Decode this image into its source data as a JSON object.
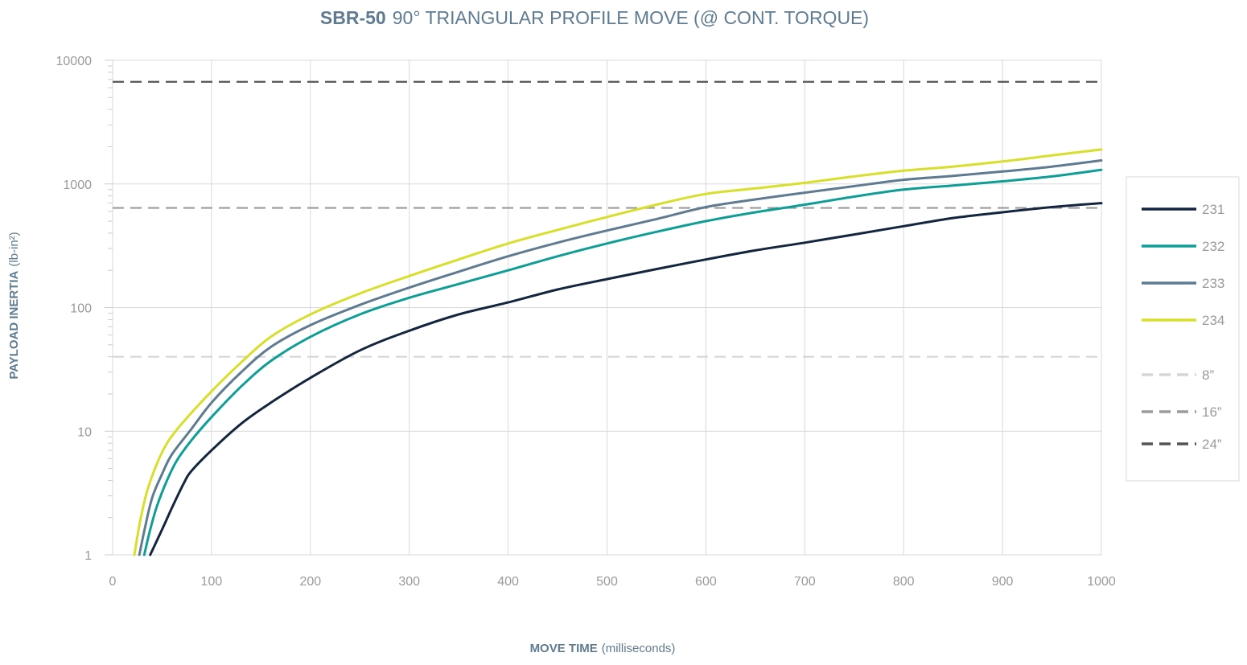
{
  "chart_data": {
    "type": "line",
    "title_bold": "SBR-50",
    "title_rest": "90° TRIANGULAR PROFILE MOVE (@ CONT. TORQUE)",
    "xlabel_bold": "MOVE TIME",
    "xlabel_rest": "(milliseconds)",
    "ylabel_bold": "PAYLOAD INERTIA",
    "ylabel_rest": "(lb-in²)",
    "xlim": [
      0,
      1000
    ],
    "ylim": [
      1,
      10000
    ],
    "yscale": "log",
    "grid": true,
    "legend_position": "right",
    "x_ticks": [
      "0",
      "100",
      "200",
      "300",
      "400",
      "500",
      "600",
      "700",
      "800",
      "900",
      "1000"
    ],
    "y_ticks": [
      "1",
      "10",
      "100",
      "1000",
      "10000"
    ],
    "series": [
      {
        "name": "231",
        "color": "#14253f",
        "x": [
          38,
          50,
          60,
          72,
          80,
          100,
          130,
          160,
          200,
          250,
          300,
          350,
          400,
          450,
          500,
          550,
          600,
          650,
          700,
          750,
          800,
          850,
          900,
          950,
          1000
        ],
        "y": [
          1,
          1.6,
          2.4,
          3.8,
          4.8,
          7.0,
          11.5,
          17,
          27,
          45,
          65,
          88,
          110,
          140,
          170,
          205,
          245,
          290,
          335,
          390,
          455,
          530,
          590,
          650,
          700
        ]
      },
      {
        "name": "232",
        "color": "#0f9e96",
        "x": [
          32,
          38,
          45,
          55,
          65,
          80,
          100,
          130,
          160,
          200,
          250,
          300,
          350,
          400,
          450,
          500,
          550,
          600,
          650,
          700,
          750,
          800,
          850,
          900,
          950,
          1000
        ],
        "y": [
          1,
          1.6,
          2.5,
          4.0,
          5.8,
          8.5,
          13,
          23,
          37,
          58,
          88,
          120,
          155,
          200,
          260,
          330,
          410,
          500,
          590,
          680,
          790,
          900,
          970,
          1050,
          1150,
          1300
        ]
      },
      {
        "name": "233",
        "color": "#5f7b91",
        "x": [
          27,
          33,
          40,
          50,
          60,
          80,
          100,
          130,
          160,
          200,
          250,
          300,
          350,
          400,
          450,
          500,
          550,
          600,
          650,
          700,
          750,
          800,
          850,
          900,
          950,
          1000
        ],
        "y": [
          1,
          1.7,
          2.9,
          4.5,
          6.5,
          10.5,
          17,
          30,
          48,
          72,
          105,
          145,
          195,
          260,
          335,
          420,
          520,
          650,
          750,
          850,
          960,
          1080,
          1160,
          1260,
          1380,
          1550
        ]
      },
      {
        "name": "234",
        "color": "#d7df2a",
        "x": [
          22,
          28,
          35,
          45,
          55,
          70,
          100,
          130,
          160,
          200,
          250,
          300,
          350,
          400,
          450,
          500,
          550,
          600,
          650,
          700,
          750,
          800,
          850,
          900,
          950,
          1000
        ],
        "y": [
          1,
          1.9,
          3.3,
          5.5,
          8.0,
          11.5,
          21,
          36,
          58,
          88,
          130,
          180,
          245,
          330,
          425,
          540,
          680,
          830,
          920,
          1020,
          1150,
          1280,
          1380,
          1520,
          1700,
          1900
        ]
      }
    ],
    "reference_lines": [
      {
        "name": "8”",
        "value": 40,
        "color": "#d6d6d6"
      },
      {
        "name": "16”",
        "value": 640,
        "color": "#9b9b9b"
      },
      {
        "name": "24”",
        "value": 6700,
        "color": "#555555"
      }
    ]
  }
}
